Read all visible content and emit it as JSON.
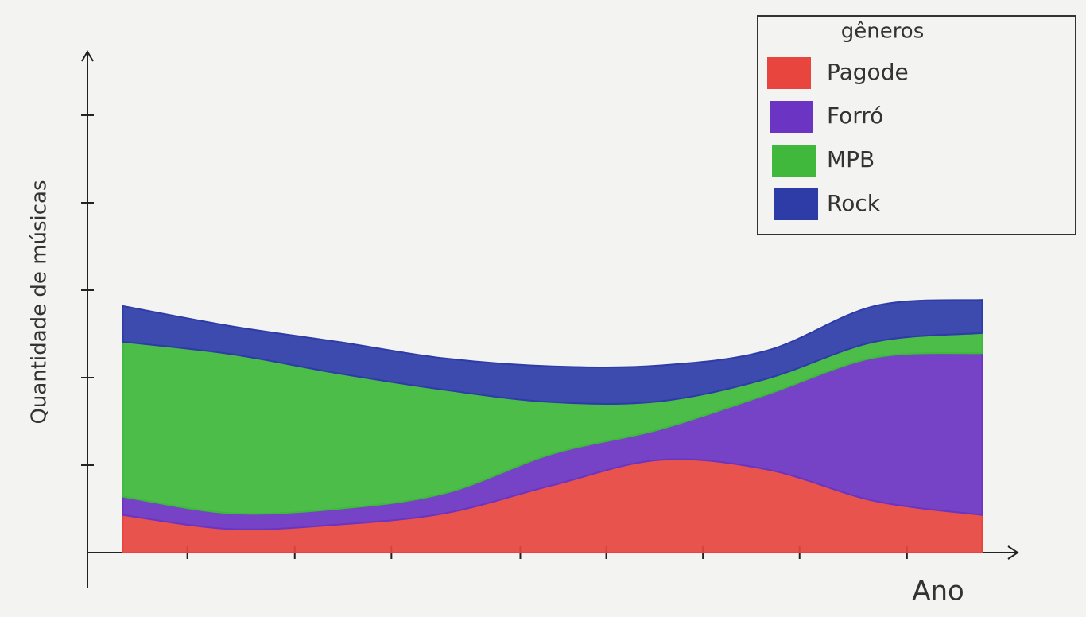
{
  "chart_data": {
    "type": "stacked_area",
    "x_label": "Ano",
    "y_label": "Quantidade de músicas",
    "legend_title": "gêneros",
    "legend_position": "upper right",
    "x": [
      0,
      1,
      2,
      3,
      4,
      5,
      6,
      7,
      8
    ],
    "xlim": [
      -0.33,
      8.33
    ],
    "xticks": [
      0.6,
      1.6,
      2.5,
      3.7,
      4.5,
      5.4,
      6.3,
      7.3
    ],
    "ylim": [
      0,
      5.5
    ],
    "yticks": [
      1,
      2,
      3,
      4,
      5
    ],
    "series": [
      {
        "name": "Pagode",
        "color": "#e8453f",
        "values": [
          0.43,
          0.27,
          0.32,
          0.45,
          0.77,
          1.06,
          0.95,
          0.59,
          0.43
        ]
      },
      {
        "name": "Forró",
        "color": "#6b34c2",
        "values": [
          0.21,
          0.18,
          0.18,
          0.23,
          0.36,
          0.35,
          0.86,
          1.64,
          1.85
        ]
      },
      {
        "name": "MPB",
        "color": "#3fb83c",
        "values": [
          1.77,
          1.82,
          1.55,
          1.18,
          0.59,
          0.32,
          0.18,
          0.18,
          0.23
        ]
      },
      {
        "name": "Rock",
        "color": "#2e3ca8",
        "values": [
          0.41,
          0.32,
          0.36,
          0.36,
          0.41,
          0.41,
          0.32,
          0.41,
          0.38
        ]
      }
    ]
  }
}
